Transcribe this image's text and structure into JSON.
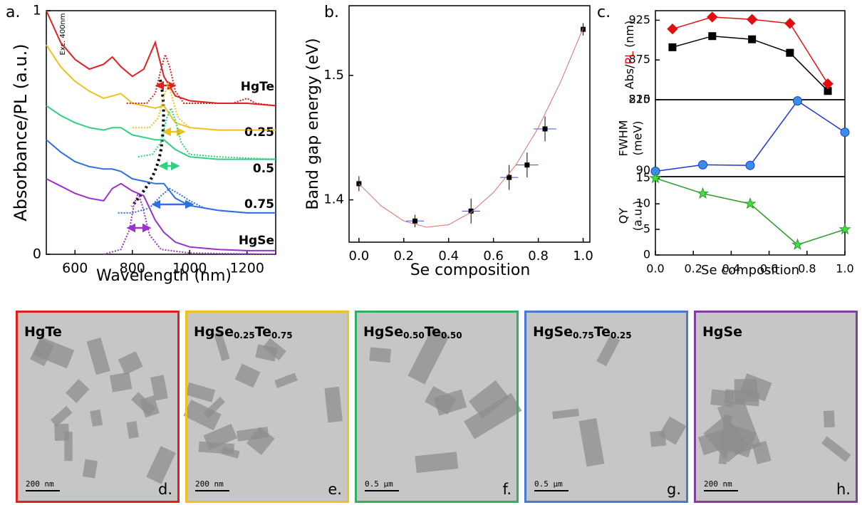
{
  "chart_data": [
    {
      "type": "line",
      "panel_label": "a.",
      "xlabel": "Wavelength (nm)",
      "ylabel": "Absorbance/PL (a.u.)",
      "annotation": "Exc. 400nm",
      "xlim": [
        500,
        1300
      ],
      "xticks": [
        600,
        800,
        1000,
        1200
      ],
      "ylim": [
        0,
        1
      ],
      "yticks": [
        0,
        1
      ],
      "series": [
        {
          "name": "HgTe",
          "color": "#e02020",
          "x": [
            500,
            550,
            600,
            650,
            700,
            730,
            760,
            800,
            840,
            880,
            910,
            950,
            1000,
            1100,
            1200,
            1300
          ],
          "values": [
            1.0,
            0.87,
            0.8,
            0.76,
            0.78,
            0.81,
            0.77,
            0.73,
            0.76,
            0.87,
            0.73,
            0.65,
            0.63,
            0.62,
            0.62,
            0.61
          ]
        },
        {
          "name": "0.25",
          "color": "#f0c020",
          "x": [
            500,
            550,
            600,
            650,
            700,
            730,
            760,
            800,
            840,
            880,
            910,
            950,
            1000,
            1100,
            1200,
            1300
          ],
          "values": [
            0.86,
            0.77,
            0.71,
            0.67,
            0.64,
            0.65,
            0.66,
            0.62,
            0.61,
            0.6,
            0.61,
            0.54,
            0.52,
            0.51,
            0.51,
            0.51
          ]
        },
        {
          "name": "0.5",
          "color": "#30d080",
          "x": [
            500,
            550,
            600,
            650,
            700,
            730,
            760,
            800,
            840,
            880,
            910,
            950,
            1000,
            1100,
            1200,
            1300
          ],
          "values": [
            0.61,
            0.57,
            0.54,
            0.52,
            0.51,
            0.52,
            0.52,
            0.49,
            0.48,
            0.47,
            0.47,
            0.43,
            0.4,
            0.39,
            0.39,
            0.39
          ]
        },
        {
          "name": "0.75",
          "color": "#2f6fe0",
          "x": [
            500,
            550,
            600,
            650,
            700,
            730,
            760,
            800,
            840,
            880,
            910,
            950,
            1000,
            1100,
            1200,
            1300
          ],
          "values": [
            0.47,
            0.42,
            0.38,
            0.36,
            0.35,
            0.35,
            0.34,
            0.31,
            0.3,
            0.29,
            0.29,
            0.23,
            0.2,
            0.18,
            0.17,
            0.17
          ]
        },
        {
          "name": "HgSe",
          "color": "#9a30d0",
          "x": [
            500,
            550,
            600,
            650,
            700,
            730,
            760,
            800,
            840,
            880,
            910,
            950,
            1000,
            1100,
            1200,
            1300
          ],
          "values": [
            0.31,
            0.28,
            0.25,
            0.23,
            0.22,
            0.27,
            0.29,
            0.26,
            0.24,
            0.14,
            0.09,
            0.05,
            0.03,
            0.02,
            0.015,
            0.015
          ]
        },
        {
          "color": "#e02020",
          "style": "dotted",
          "x": [
            780,
            850,
            880,
            900,
            915,
            930,
            950,
            980,
            1050,
            1150,
            1200,
            1230,
            1300
          ],
          "values": [
            0.62,
            0.62,
            0.66,
            0.76,
            0.82,
            0.77,
            0.67,
            0.62,
            0.62,
            0.62,
            0.64,
            0.62,
            0.61
          ]
        },
        {
          "color": "#f0c020",
          "style": "dotted",
          "x": [
            800,
            860,
            890,
            910,
            925,
            940,
            960,
            1000,
            1100,
            1300
          ],
          "values": [
            0.52,
            0.52,
            0.56,
            0.65,
            0.7,
            0.64,
            0.56,
            0.52,
            0.51,
            0.51
          ]
        },
        {
          "color": "#30d080",
          "style": "dotted",
          "x": [
            820,
            870,
            900,
            920,
            935,
            950,
            970,
            1000,
            1100,
            1300
          ],
          "values": [
            0.4,
            0.41,
            0.46,
            0.56,
            0.6,
            0.55,
            0.46,
            0.41,
            0.4,
            0.39
          ]
        },
        {
          "color": "#2f6fe0",
          "style": "dotted",
          "x": [
            750,
            800,
            860,
            900,
            930,
            960,
            1000,
            1050,
            1100,
            1200,
            1300
          ],
          "values": [
            0.17,
            0.17,
            0.19,
            0.24,
            0.27,
            0.25,
            0.22,
            0.19,
            0.18,
            0.17,
            0.17
          ]
        },
        {
          "color": "#9a30d0",
          "style": "dotted",
          "x": [
            700,
            760,
            790,
            805,
            820,
            835,
            860,
            900,
            1000,
            1300
          ],
          "values": [
            0,
            0.02,
            0.1,
            0.2,
            0.25,
            0.2,
            0.08,
            0.02,
            0.005,
            0
          ]
        }
      ]
    },
    {
      "type": "scatter",
      "panel_label": "b.",
      "xlabel": "Se composition",
      "ylabel": "Band gap energy (eV)",
      "xlim": [
        -0.044,
        1.03
      ],
      "xticks": [
        {
          "value": 0,
          "label": "0.0"
        },
        0.2,
        0.4,
        0.6,
        0.8,
        {
          "value": 1,
          "label": "1.0"
        }
      ],
      "ylim": [
        1.366,
        1.556
      ],
      "yticks": [
        1.4,
        1.5
      ],
      "series": [
        {
          "color": "#000000",
          "errcolor": "#3050d0",
          "x": [
            0,
            0.25,
            0.5,
            0.67,
            0.75,
            0.83,
            1.0
          ],
          "values": [
            1.413,
            1.383,
            1.391,
            1.418,
            1.428,
            1.457,
            1.537
          ],
          "xerr": [
            0,
            0.04,
            0.04,
            0.04,
            0.05,
            0.05,
            0
          ],
          "yerr": [
            0.006,
            0.005,
            0.01,
            0.01,
            0.01,
            0.01,
            0.005
          ]
        },
        {
          "type": "line",
          "color": "#e07070",
          "x": [
            0,
            0.1,
            0.2,
            0.3,
            0.4,
            0.5,
            0.6,
            0.7,
            0.8,
            0.9,
            1.0
          ],
          "values": [
            1.413,
            1.395,
            1.383,
            1.378,
            1.38,
            1.39,
            1.406,
            1.428,
            1.458,
            1.495,
            1.538
          ]
        }
      ]
    },
    {
      "type": "line",
      "panel_label": "c.",
      "ylabel": [
        "Abs/",
        "PL",
        " (nm)"
      ],
      "ylabel_colors": [
        "#000000",
        "#e01010",
        "#000000"
      ],
      "xlim": [
        0,
        1
      ],
      "ylim": [
        825,
        937
      ],
      "yticks": [
        825,
        875,
        925
      ],
      "series": [
        {
          "color": "#000000",
          "marker": "square",
          "marker_color": "#000000",
          "x": [
            0.09,
            0.3,
            0.51,
            0.71,
            0.91
          ],
          "values": [
            891,
            905,
            901,
            884,
            836
          ]
        },
        {
          "color": "#e01010",
          "marker": "diamond",
          "marker_color": "#e01010",
          "x": [
            0.09,
            0.3,
            0.51,
            0.71,
            0.91
          ],
          "values": [
            914,
            929,
            926,
            921,
            845
          ]
        }
      ]
    },
    {
      "type": "line",
      "ylabel": [
        "FWHM",
        "(meV)"
      ],
      "xlim": [
        0,
        1
      ],
      "ylim": [
        80,
        210
      ],
      "yticks": [
        90,
        210
      ],
      "series": [
        {
          "color": "#2038d0",
          "marker": "circle",
          "marker_color": "#3a8ee8",
          "x": [
            0,
            0.25,
            0.5,
            0.75,
            1.0
          ],
          "values": [
            89,
            100,
            99,
            208,
            155
          ]
        }
      ]
    },
    {
      "type": "line",
      "xlabel": "Se composition",
      "ylabel": [
        "QY",
        "(a.u.)"
      ],
      "xlim": [
        0,
        1
      ],
      "xticks": [
        {
          "value": 0,
          "label": "0.0"
        },
        0.2,
        0.4,
        0.6,
        0.8,
        {
          "value": 1,
          "label": "1.0"
        }
      ],
      "ylim": [
        0,
        15.3
      ],
      "yticks": [
        0,
        5,
        10,
        15
      ],
      "series": [
        {
          "color": "#2a9a2a",
          "marker": "star",
          "marker_color": "#40e040",
          "x": [
            0,
            0.25,
            0.5,
            0.75,
            1.0
          ],
          "values": [
            15,
            12,
            10,
            2,
            5
          ]
        }
      ]
    }
  ],
  "tem_panels": [
    {
      "formula": [
        "HgTe"
      ],
      "scale_bar": "200 nm",
      "letter": "d.",
      "border": "#e02020"
    },
    {
      "formula": [
        "HgSe",
        "0.25",
        "Te",
        "0.75"
      ],
      "scale_bar": "200 nm",
      "letter": "e.",
      "border": "#f0c020"
    },
    {
      "formula": [
        "HgSe",
        "0.50",
        "Te",
        "0.50"
      ],
      "scale_bar": "0.5 µm",
      "letter": "f.",
      "border": "#30b060"
    },
    {
      "formula": [
        "HgSe",
        "0.75",
        "Te",
        "0.25"
      ],
      "scale_bar": "0.5 µm",
      "letter": "g.",
      "border": "#4a7ad0"
    },
    {
      "formula": [
        "HgSe"
      ],
      "scale_bar": "200 nm",
      "letter": "h.",
      "border": "#8040a0"
    }
  ]
}
